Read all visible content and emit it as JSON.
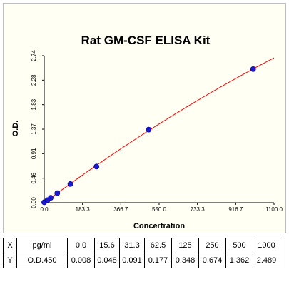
{
  "chart_data": {
    "type": "scatter",
    "title": "Rat GM-CSF ELISA Kit",
    "xlabel": "Concertration",
    "ylabel": "O.D.",
    "xlim": [
      0,
      1100
    ],
    "ylim": [
      0,
      2.74
    ],
    "x_ticks": [
      "0.0",
      "183.3",
      "366.7",
      "550.0",
      "733.3",
      "916.7",
      "1100.0"
    ],
    "y_ticks": [
      "0.00",
      "0.46",
      "0.91",
      "1.37",
      "1.83",
      "2.28",
      "2.74"
    ],
    "x": [
      0.0,
      15.6,
      31.3,
      62.5,
      125,
      250,
      500,
      1000
    ],
    "y": [
      0.008,
      0.048,
      0.091,
      0.177,
      0.348,
      0.674,
      1.362,
      2.489
    ],
    "fit_line": true,
    "point_color": "#1a1acc",
    "line_color": "#ff0000",
    "grid": false
  },
  "table": {
    "rows": [
      {
        "head": "X",
        "unit": "pg/ml",
        "values": [
          "0.0",
          "15.6",
          "31.3",
          "62.5",
          "125",
          "250",
          "500",
          "1000"
        ]
      },
      {
        "head": "Y",
        "unit": "O.D.450",
        "values": [
          "0.008",
          "0.048",
          "0.091",
          "0.177",
          "0.348",
          "0.674",
          "1.362",
          "2.489"
        ]
      }
    ]
  }
}
